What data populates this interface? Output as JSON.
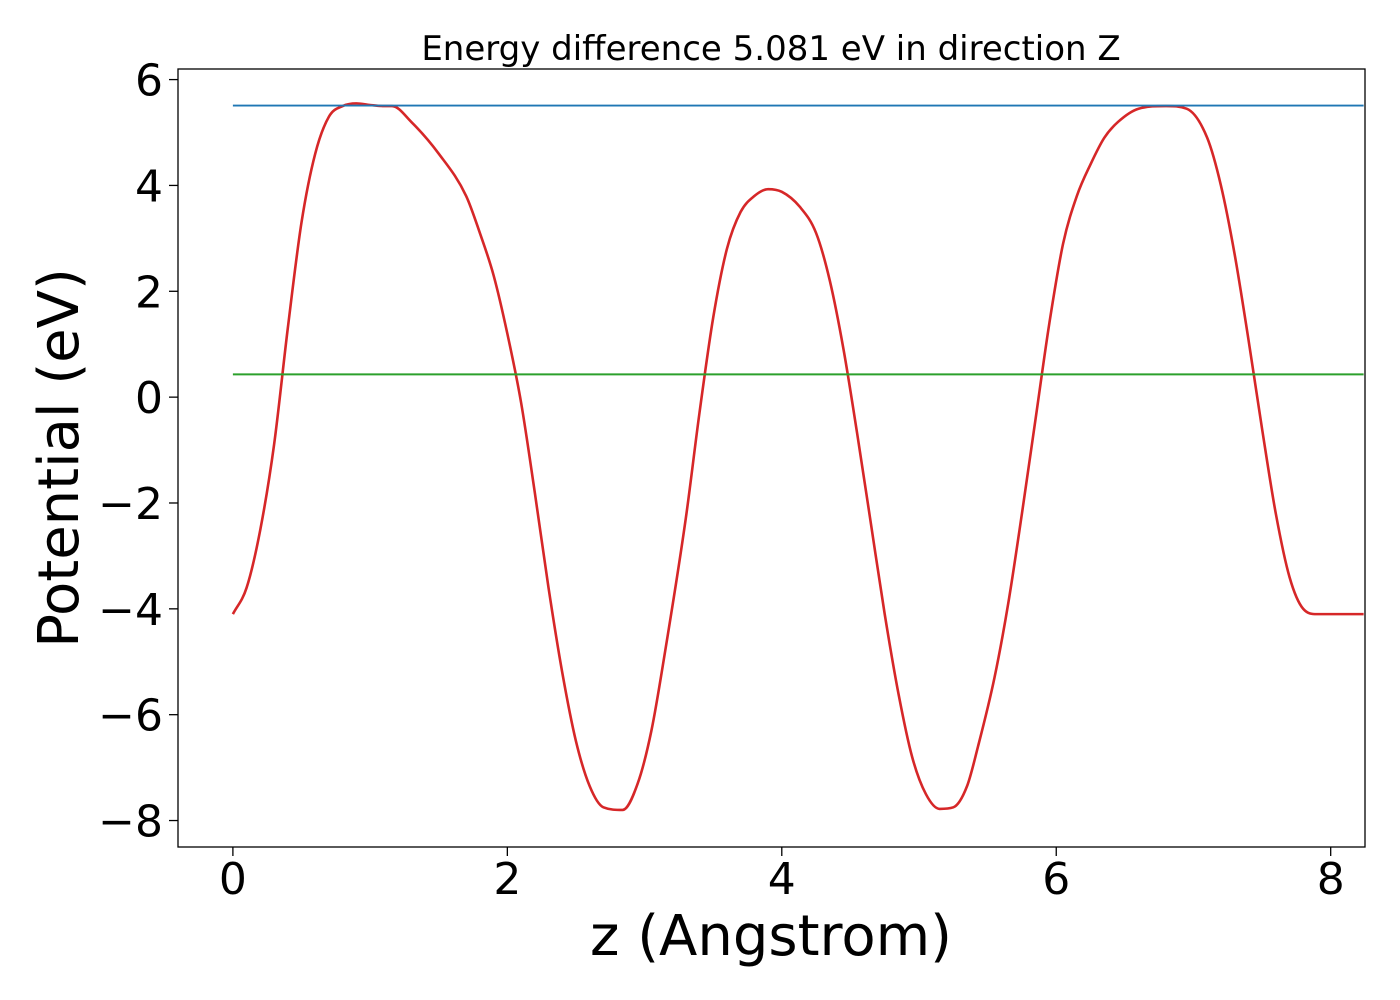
{
  "chart_data": {
    "type": "line",
    "title": "Energy difference 5.081 eV in direction Z",
    "xlabel": "z (Angstrom)",
    "ylabel": "Potential (eV)",
    "xlim": [
      -0.4,
      8.25
    ],
    "ylim": [
      -8.5,
      6.2
    ],
    "xticks": [
      0,
      2,
      4,
      6,
      8
    ],
    "xtick_labels": [
      "0",
      "2",
      "4",
      "6",
      "8"
    ],
    "yticks": [
      -8,
      -6,
      -4,
      -2,
      0,
      2,
      4,
      6
    ],
    "ytick_labels": [
      "−8",
      "−6",
      "−4",
      "−2",
      "0",
      "2",
      "4",
      "6"
    ],
    "grid": false,
    "series": [
      {
        "color": "#d62728",
        "style": "curve",
        "x": [
          0,
          0.1,
          0.2,
          0.3,
          0.4,
          0.5,
          0.6,
          0.7,
          0.8,
          0.9,
          1.0,
          1.1,
          1.16,
          1.3,
          1.5,
          1.7,
          1.8,
          1.9,
          2.0,
          2.1,
          2.2,
          2.3,
          2.4,
          2.5,
          2.6,
          2.7,
          2.84,
          2.95,
          3.05,
          3.15,
          3.3,
          3.4,
          3.5,
          3.6,
          3.7,
          3.8,
          3.9,
          4.0,
          4.13,
          4.25,
          4.35,
          4.45,
          4.55,
          4.65,
          4.75,
          4.85,
          4.95,
          5.05,
          5.15,
          5.25,
          5.35,
          5.43,
          5.55,
          5.65,
          5.75,
          5.85,
          5.95,
          6.05,
          6.15,
          6.25,
          6.35,
          6.45,
          6.6,
          6.8,
          6.95,
          7.1,
          7.2,
          7.3,
          7.4,
          7.5,
          7.6,
          7.7,
          7.8,
          7.9,
          8.0,
          8.1,
          8.24
        ],
        "values": [
          -4.1,
          -3.6,
          -2.5,
          -0.9,
          1.3,
          3.3,
          4.6,
          5.3,
          5.5,
          5.55,
          5.52,
          5.5,
          5.5,
          5.2,
          4.6,
          3.8,
          3.1,
          2.3,
          1.2,
          -0.1,
          -1.8,
          -3.6,
          -5.2,
          -6.5,
          -7.35,
          -7.75,
          -7.8,
          -7.3,
          -6.3,
          -4.8,
          -2.3,
          -0.3,
          1.5,
          2.8,
          3.5,
          3.8,
          3.93,
          3.88,
          3.6,
          3.1,
          2.2,
          0.9,
          -0.7,
          -2.4,
          -4.1,
          -5.6,
          -6.8,
          -7.5,
          -7.78,
          -7.75,
          -7.35,
          -6.6,
          -5.3,
          -3.9,
          -2.2,
          -0.4,
          1.4,
          2.9,
          3.8,
          4.4,
          4.9,
          5.2,
          5.45,
          5.5,
          5.45,
          4.9,
          4.0,
          2.7,
          1.1,
          -0.6,
          -2.2,
          -3.4,
          -4.0,
          -4.1,
          -4.1,
          -4.1,
          -4.1
        ]
      },
      {
        "color": "#1f77b4",
        "style": "line",
        "x": [
          0,
          8.24
        ],
        "values": [
          5.51,
          5.51
        ]
      },
      {
        "color": "#2ca02c",
        "style": "line",
        "x": [
          0,
          8.24
        ],
        "values": [
          0.43,
          0.43
        ]
      }
    ]
  }
}
